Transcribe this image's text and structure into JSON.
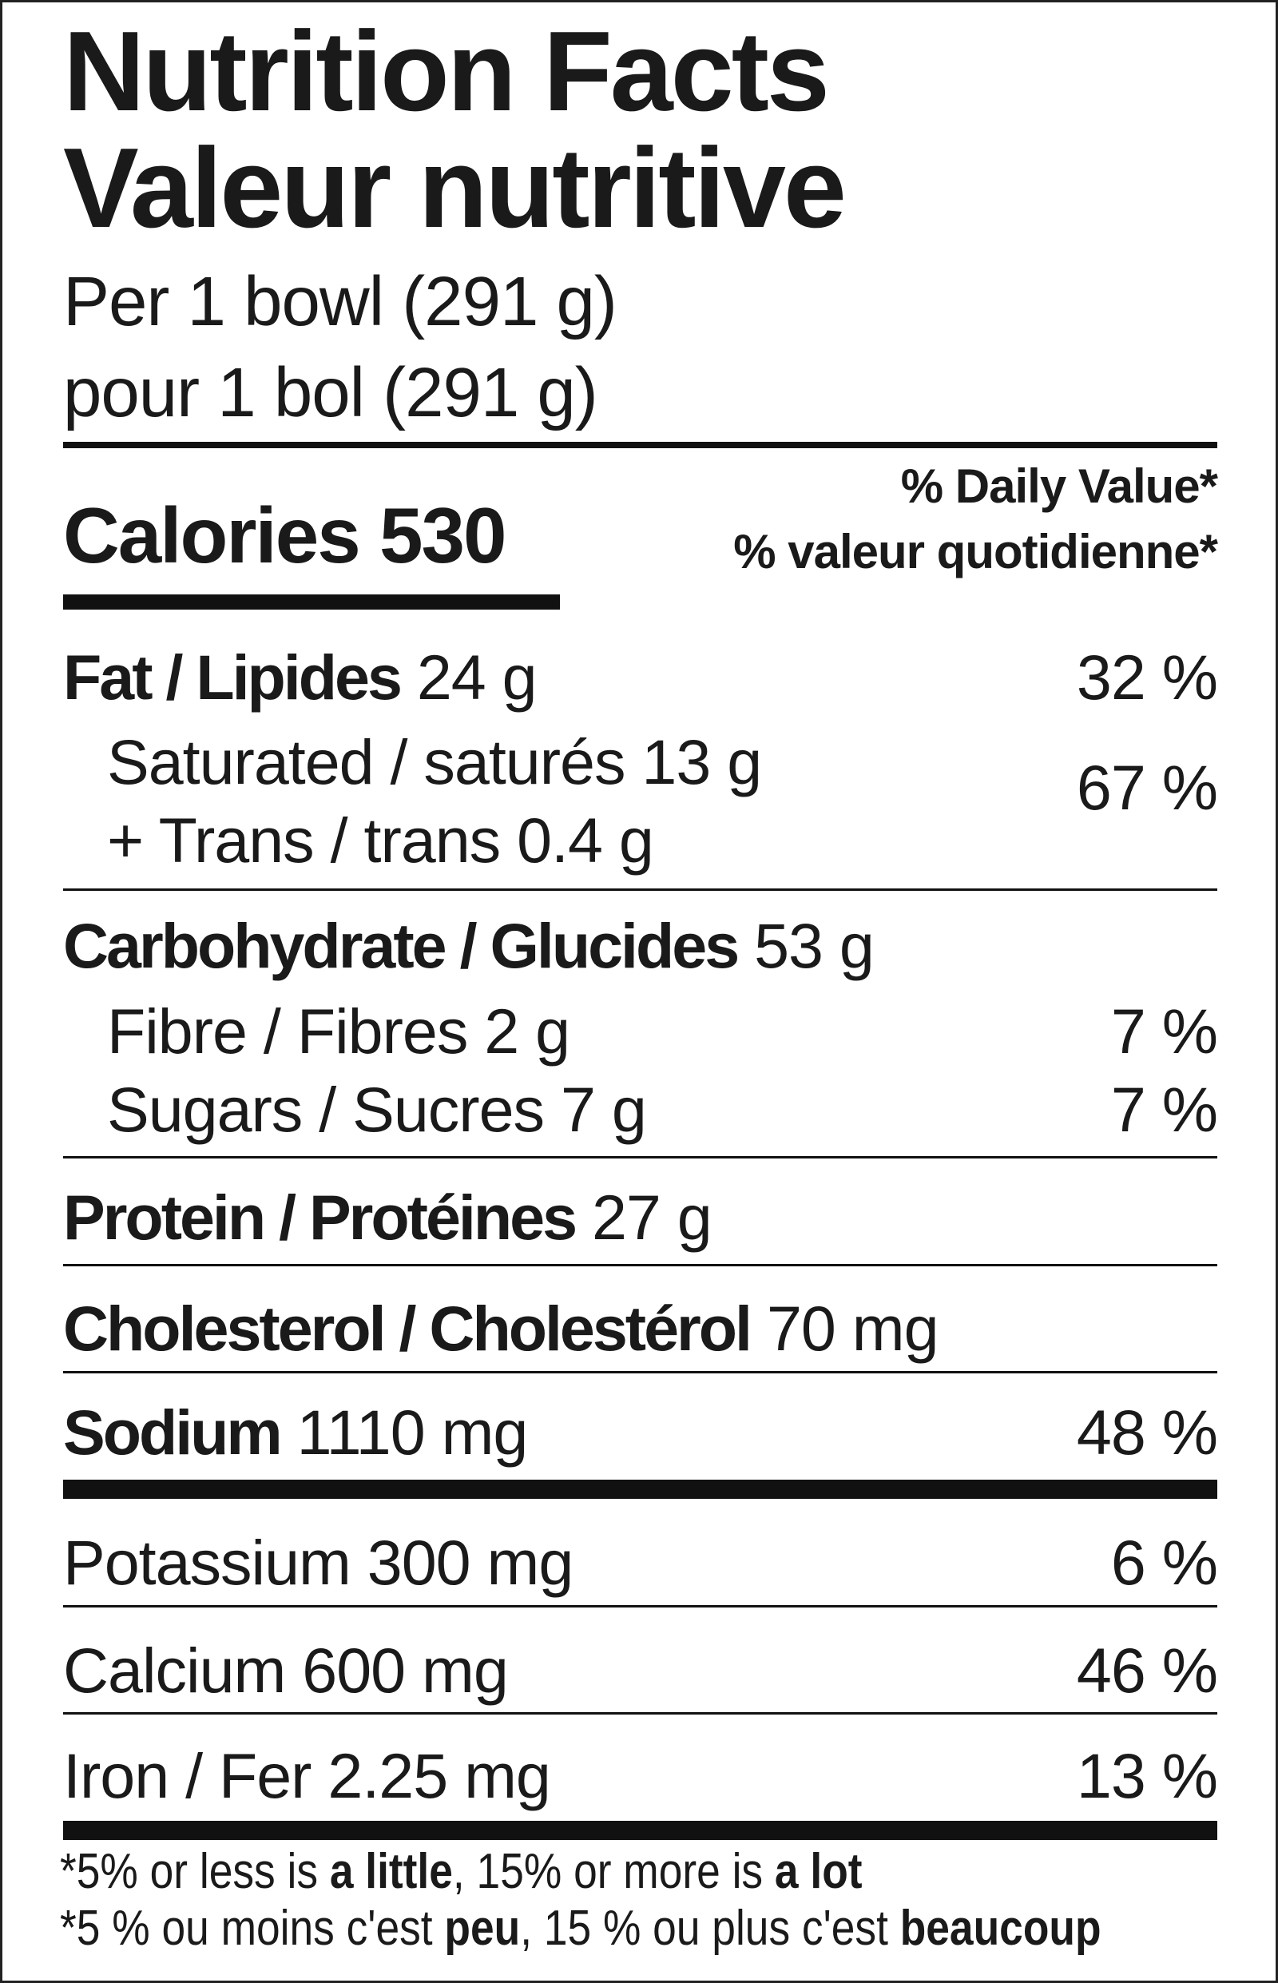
{
  "title_en": "Nutrition Facts",
  "title_fr": "Valeur nutritive",
  "serving_en": "Per 1 bowl (291 g)",
  "serving_fr": "pour 1 bol (291 g)",
  "calories": {
    "label": "Calories",
    "value": "530"
  },
  "daily_value_en": "% Daily Value*",
  "daily_value_fr": "% valeur quotidienne*",
  "nutrients": {
    "fat": {
      "label": "Fat / Lipides",
      "amount": "24 g",
      "dv": "32 %"
    },
    "saturated": {
      "label": "Saturated / saturés 13 g"
    },
    "trans": {
      "label": "+ Trans / trans 0.4 g"
    },
    "sat_trans_dv": "67 %",
    "carbohydrate": {
      "label": "Carbohydrate / Glucides",
      "amount": "53 g"
    },
    "fibre": {
      "label": "Fibre / Fibres 2 g",
      "dv": "7 %"
    },
    "sugars": {
      "label": "Sugars / Sucres 7 g",
      "dv": "7 %"
    },
    "protein": {
      "label": "Protein / Protéines",
      "amount": "27 g"
    },
    "cholesterol": {
      "label": "Cholesterol / Cholestérol",
      "amount": "70 mg"
    },
    "sodium": {
      "label": "Sodium",
      "amount": "1110 mg",
      "dv": "48 %"
    },
    "potassium": {
      "label": "Potassium 300 mg",
      "dv": "6 %"
    },
    "calcium": {
      "label": "Calcium 600 mg",
      "dv": "46 %"
    },
    "iron": {
      "label": "Iron / Fer 2.25 mg",
      "dv": "13 %"
    }
  },
  "footnote_en": {
    "a": "*5% or less is ",
    "b": "a little",
    "c": ", 15% or more is ",
    "d": "a lot"
  },
  "footnote_fr": {
    "a": "*5 % ou moins c'est  ",
    "b": "peu",
    "c": ", 15 % ou plus c'est ",
    "d": "beaucoup"
  }
}
